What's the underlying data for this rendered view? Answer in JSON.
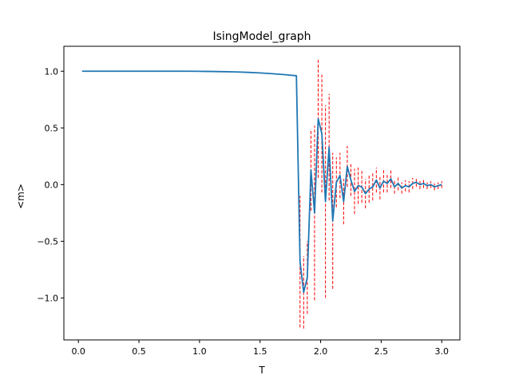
{
  "chart_data": {
    "type": "line",
    "title": "IsingModel_graph",
    "xlabel": "T",
    "ylabel": "<m>",
    "xlim": [
      -0.12,
      3.15
    ],
    "ylim": [
      -1.37,
      1.22
    ],
    "xticks": [
      {
        "value": 0.0,
        "label": "0.0"
      },
      {
        "value": 0.5,
        "label": "0.5"
      },
      {
        "value": 1.0,
        "label": "1.0"
      },
      {
        "value": 1.5,
        "label": "1.5"
      },
      {
        "value": 2.0,
        "label": "2.0"
      },
      {
        "value": 2.5,
        "label": "2.5"
      },
      {
        "value": 3.0,
        "label": "3.0"
      }
    ],
    "yticks": [
      {
        "value": -1.0,
        "label": "−1.0"
      },
      {
        "value": -0.5,
        "label": "−0.5"
      },
      {
        "value": 0.0,
        "label": "0.0"
      },
      {
        "value": 0.5,
        "label": "0.5"
      },
      {
        "value": 1.0,
        "label": "1.0"
      }
    ],
    "grid": false,
    "series_color": "#1f77b4",
    "errorbar_color": "#ff0000",
    "x": [
      0.03,
      0.1,
      0.2,
      0.3,
      0.4,
      0.5,
      0.6,
      0.7,
      0.8,
      0.9,
      1.0,
      1.1,
      1.2,
      1.3,
      1.4,
      1.5,
      1.6,
      1.7,
      1.8,
      1.83,
      1.86,
      1.89,
      1.92,
      1.95,
      1.98,
      2.01,
      2.04,
      2.07,
      2.1,
      2.13,
      2.16,
      2.19,
      2.22,
      2.25,
      2.28,
      2.31,
      2.34,
      2.37,
      2.4,
      2.43,
      2.46,
      2.49,
      2.52,
      2.55,
      2.58,
      2.61,
      2.64,
      2.67,
      2.7,
      2.73,
      2.76,
      2.79,
      2.82,
      2.85,
      2.88,
      2.91,
      2.94,
      2.97,
      3.0
    ],
    "y": [
      1.0,
      1.0,
      1.0,
      1.0,
      1.0,
      1.0,
      1.0,
      1.0,
      1.0,
      1.0,
      0.999,
      0.998,
      0.996,
      0.994,
      0.99,
      0.985,
      0.978,
      0.97,
      0.96,
      -0.68,
      -0.95,
      -0.82,
      0.13,
      -0.25,
      0.58,
      0.45,
      -0.15,
      0.33,
      -0.32,
      0.02,
      0.08,
      -0.15,
      0.16,
      0.04,
      -0.06,
      -0.01,
      -0.02,
      -0.08,
      -0.04,
      -0.02,
      0.04,
      -0.03,
      0.03,
      0.01,
      0.05,
      -0.02,
      0.01,
      -0.03,
      -0.01,
      -0.02,
      0.01,
      0.02,
      0.0,
      0.01,
      -0.01,
      0.0,
      -0.02,
      -0.01,
      0.0
    ],
    "yerr": [
      0,
      0,
      0,
      0,
      0,
      0,
      0,
      0,
      0,
      0,
      0,
      0,
      0,
      0,
      0,
      0,
      0,
      0,
      0,
      0.58,
      0.32,
      0.32,
      0.36,
      0.77,
      0.52,
      0.52,
      0.85,
      0.47,
      0.6,
      0.22,
      0.2,
      0.2,
      0.18,
      0.14,
      0.2,
      0.16,
      0.14,
      0.13,
      0.12,
      0.12,
      0.11,
      0.1,
      0.1,
      0.08,
      0.08,
      0.06,
      0.06,
      0.05,
      0.05,
      0.05,
      0.05,
      0.04,
      0.04,
      0.04,
      0.03,
      0.03,
      0.03,
      0.03,
      0.03
    ]
  }
}
